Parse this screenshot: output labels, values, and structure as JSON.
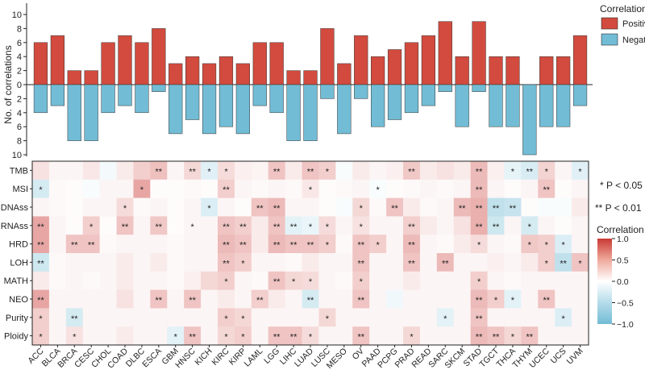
{
  "chart_data": [
    {
      "type": "bar",
      "title": "",
      "ylabel": "No. of correlations",
      "ylim": [
        -10,
        10
      ],
      "yticks": [
        10,
        8,
        6,
        4,
        2,
        0,
        2,
        4,
        6,
        8,
        10
      ],
      "categories": [
        "ACC",
        "BLCA",
        "BRCA",
        "CESC",
        "CHOL",
        "COAD",
        "DLBC",
        "ESCA",
        "GBM",
        "HNSC",
        "KICH",
        "KIRC",
        "KIRP",
        "LAML",
        "LGG",
        "LIHC",
        "LUAD",
        "LUSC",
        "MESO",
        "OV",
        "PAAD",
        "PCPG",
        "PRAD",
        "READ",
        "SARC",
        "SKCM",
        "STAD",
        "TGCT",
        "THCA",
        "THYM",
        "UCEC",
        "UCS",
        "UVM"
      ],
      "legend": {
        "title": "Correlation",
        "position": "top-right"
      },
      "series": [
        {
          "name": "Positive",
          "color": "#D24B3E",
          "values": [
            6,
            7,
            2,
            2,
            6,
            7,
            6,
            8,
            3,
            4,
            3,
            4,
            3,
            6,
            6,
            2,
            2,
            8,
            3,
            7,
            4,
            5,
            6,
            7,
            9,
            4,
            9,
            4,
            4,
            0,
            4,
            4,
            7
          ]
        },
        {
          "name": "Negative",
          "color": "#72BCD5",
          "values": [
            4,
            3,
            8,
            8,
            4,
            3,
            4,
            1,
            7,
            5,
            7,
            6,
            7,
            3,
            4,
            8,
            8,
            2,
            7,
            2,
            6,
            5,
            4,
            3,
            1,
            6,
            1,
            6,
            6,
            10,
            6,
            6,
            3
          ]
        }
      ]
    },
    {
      "type": "heatmap",
      "title": "",
      "x": [
        "ACC",
        "BLCA",
        "BRCA",
        "CESC",
        "CHOL",
        "COAD",
        "DLBC",
        "ESCA",
        "GBM",
        "HNSC",
        "KICH",
        "KIRC",
        "KIRP",
        "LAML",
        "LGG",
        "LIHC",
        "LUAD",
        "LUSC",
        "MESO",
        "OV",
        "PAAD",
        "PCPG",
        "PRAD",
        "READ",
        "SARC",
        "SKCM",
        "STAD",
        "TGCT",
        "THCA",
        "THYM",
        "UCEC",
        "UCS",
        "UVM"
      ],
      "y": [
        "TMB",
        "MSI",
        "DNAss",
        "RNAss",
        "HRD",
        "LOH",
        "MATH",
        "NEO",
        "Purity",
        "Ploidy"
      ],
      "values": [
        [
          0.15,
          0.05,
          0.05,
          0.12,
          -0.08,
          0.1,
          0.25,
          0.32,
          0.05,
          0.2,
          -0.22,
          0.18,
          0.08,
          0.06,
          0.3,
          0.1,
          0.3,
          0.25,
          -0.05,
          0.1,
          0.05,
          0.08,
          0.28,
          0.1,
          0.15,
          0.1,
          0.35,
          0.08,
          -0.18,
          -0.28,
          0.22,
          0.05,
          -0.22
        ],
        [
          -0.3,
          0.03,
          0.02,
          -0.05,
          0.05,
          0.05,
          0.45,
          0.02,
          0.02,
          0.03,
          0.02,
          0.25,
          0.05,
          0.03,
          0.05,
          0.03,
          0.12,
          0.02,
          0.03,
          0.05,
          -0.05,
          0.02,
          0.03,
          0.05,
          0.03,
          0.05,
          0.35,
          0.05,
          0.02,
          0.05,
          0.3,
          0.02,
          0.05
        ],
        [
          0.05,
          0.03,
          0.02,
          0.05,
          0.05,
          0.18,
          0.03,
          0.05,
          0.02,
          0.05,
          -0.25,
          0.05,
          0.02,
          0.3,
          0.35,
          0.05,
          0.05,
          0.02,
          -0.05,
          0.2,
          0.03,
          0.3,
          0.1,
          0.03,
          0.05,
          0.35,
          0.4,
          -0.45,
          -0.4,
          0.02,
          -0.05,
          -0.05,
          0.1
        ],
        [
          0.45,
          0.05,
          0.02,
          0.25,
          0.02,
          0.3,
          0.05,
          0.28,
          0.02,
          0.05,
          0.05,
          0.3,
          0.25,
          0.1,
          0.3,
          -0.2,
          -0.15,
          0.18,
          0.05,
          0.15,
          0.05,
          0.05,
          0.25,
          0.1,
          0.05,
          0.15,
          0.4,
          -0.35,
          0.05,
          -0.3,
          0.05,
          0.02,
          0.05
        ],
        [
          0.45,
          0.05,
          0.3,
          0.3,
          0.03,
          0.05,
          0.05,
          0.05,
          0.03,
          0.05,
          0.05,
          0.35,
          0.3,
          0.1,
          0.35,
          0.3,
          0.3,
          0.25,
          0.03,
          0.3,
          0.25,
          0.05,
          0.35,
          0.05,
          0.03,
          0.1,
          0.18,
          0.05,
          0.03,
          0.28,
          0.25,
          -0.25,
          0.05
        ],
        [
          -0.35,
          0.03,
          0.05,
          0.05,
          0.05,
          0.1,
          0.05,
          0.1,
          0.03,
          0.05,
          0.05,
          0.3,
          0.25,
          0.05,
          0.05,
          0.03,
          0.1,
          0.05,
          0.05,
          0.3,
          0.05,
          0.05,
          0.3,
          0.05,
          0.35,
          0.05,
          0.05,
          0.08,
          0.05,
          0.1,
          0.25,
          -0.45,
          0.3
        ],
        [
          0.1,
          0.03,
          0.05,
          0.03,
          0.05,
          0.1,
          0.05,
          0.05,
          0.03,
          0.08,
          0.2,
          0.25,
          0.05,
          0.03,
          0.3,
          0.2,
          0.18,
          0.05,
          0.03,
          0.25,
          0.05,
          0.05,
          0.1,
          0.05,
          0.05,
          0.05,
          0.25,
          0.05,
          0.03,
          0.05,
          0.05,
          0.05,
          0.05
        ],
        [
          0.45,
          0.05,
          0.05,
          0.05,
          0.05,
          0.15,
          0.05,
          0.3,
          0.05,
          0.3,
          0.05,
          0.1,
          0.05,
          0.25,
          0.1,
          0.05,
          -0.3,
          0.05,
          0.05,
          0.3,
          0.05,
          -0.1,
          0.05,
          0.05,
          0.05,
          0.05,
          0.35,
          0.25,
          -0.2,
          0.05,
          0.3,
          0.05,
          0.05
        ],
        [
          0.25,
          0.05,
          -0.3,
          0.05,
          0.05,
          0.05,
          0.05,
          0.05,
          0.05,
          0.05,
          0.05,
          0.25,
          0.2,
          0.05,
          0.05,
          0.05,
          0.05,
          0.2,
          0.05,
          0.05,
          0.05,
          0.05,
          0.05,
          0.05,
          -0.2,
          0.05,
          0.3,
          0.05,
          0.05,
          0.05,
          0.05,
          -0.25,
          0.05
        ],
        [
          0.25,
          0.05,
          0.15,
          0.05,
          0.05,
          0.1,
          0.05,
          0.05,
          -0.2,
          0.3,
          0.05,
          0.2,
          0.25,
          0.05,
          0.3,
          0.3,
          0.18,
          0.05,
          0.05,
          0.3,
          0.05,
          0.05,
          0.2,
          0.05,
          0.05,
          0.05,
          0.35,
          0.3,
          0.2,
          0.3,
          0.05,
          0.05,
          0.05
        ]
      ],
      "significance": [
        [
          "",
          "",
          "",
          "",
          "",
          "",
          "",
          "**",
          "",
          "**",
          "*",
          "*",
          "",
          "",
          "**",
          "",
          "**",
          "*",
          "",
          "",
          "",
          "",
          "**",
          "",
          "",
          "",
          "**",
          "",
          "*",
          "**",
          "*",
          "",
          "*"
        ],
        [
          "*",
          "",
          "",
          "",
          "",
          "",
          "*",
          "",
          "",
          "",
          "",
          "**",
          "",
          "",
          "",
          "",
          "*",
          "",
          "",
          "",
          "*",
          "",
          "",
          "",
          "",
          "",
          "**",
          "",
          "",
          "",
          "**",
          "",
          ""
        ],
        [
          "",
          "",
          "",
          "",
          "",
          "*",
          "",
          "",
          "",
          "",
          "*",
          "",
          "",
          "**",
          "**",
          "",
          "",
          "",
          "",
          "*",
          "",
          "**",
          "",
          "",
          "",
          "**",
          "**",
          "**",
          "**",
          "",
          "",
          "",
          ""
        ],
        [
          "**",
          "",
          "",
          "*",
          "",
          "**",
          "",
          "**",
          "",
          "*",
          "",
          "**",
          "**",
          "",
          "**",
          "**",
          "*",
          "*",
          "",
          "*",
          "",
          "",
          "**",
          "",
          "",
          "",
          "**",
          "**",
          "",
          "*",
          "",
          "",
          ""
        ],
        [
          "**",
          "",
          "**",
          "**",
          "",
          "",
          "",
          "",
          "",
          "",
          "",
          "**",
          "**",
          "",
          "**",
          "**",
          "**",
          "*",
          "",
          "**",
          "*",
          "",
          "**",
          "",
          "",
          "",
          "*",
          "",
          "",
          "*",
          "*",
          "*",
          ""
        ],
        [
          "**",
          "",
          "",
          "",
          "",
          "",
          "",
          "",
          "",
          "",
          "",
          "**",
          "*",
          "",
          "",
          "",
          "",
          "",
          "",
          "**",
          "",
          "",
          "**",
          "",
          "**",
          "",
          "",
          "",
          "",
          "",
          "*",
          "**",
          "*"
        ],
        [
          "",
          "",
          "",
          "",
          "",
          "",
          "",
          "",
          "",
          "",
          "",
          "*",
          "",
          "",
          "**",
          "*",
          "*",
          "",
          "",
          "*",
          "",
          "",
          "",
          "",
          "",
          "",
          "*",
          "",
          "",
          "",
          "",
          "",
          ""
        ],
        [
          "**",
          "",
          "",
          "",
          "",
          "",
          "",
          "**",
          "",
          "**",
          "",
          "",
          "",
          "**",
          "",
          "",
          "**",
          "",
          "",
          "**",
          "",
          "",
          "",
          "",
          "",
          "",
          "**",
          "*",
          "*",
          "",
          "**",
          "",
          ""
        ],
        [
          "*",
          "",
          "**",
          "",
          "",
          "",
          "",
          "",
          "",
          "",
          "",
          "*",
          "*",
          "",
          "",
          "",
          "",
          "*",
          "",
          "",
          "",
          "",
          "",
          "",
          "*",
          "",
          "**",
          "",
          "",
          "",
          "",
          "*",
          ""
        ],
        [
          "*",
          "",
          "*",
          "",
          "",
          "",
          "",
          "",
          "*",
          "**",
          "",
          "*",
          "*",
          "",
          "**",
          "**",
          "*",
          "",
          "",
          "**",
          "",
          "",
          "*",
          "",
          "",
          "",
          "**",
          "**",
          "*",
          "**",
          "",
          "",
          ""
        ]
      ],
      "color_scale": {
        "min": -1.0,
        "max": 1.0,
        "ticks": [
          1.0,
          0.5,
          0.0,
          -0.5,
          -1.0
        ],
        "low_color": "#72BCD5",
        "mid_color": "#FFFFFF",
        "high_color": "#C93A34"
      },
      "legend_title": "Correlation",
      "significance_legend": [
        "* P < 0.05",
        "** P < 0.01"
      ]
    }
  ]
}
